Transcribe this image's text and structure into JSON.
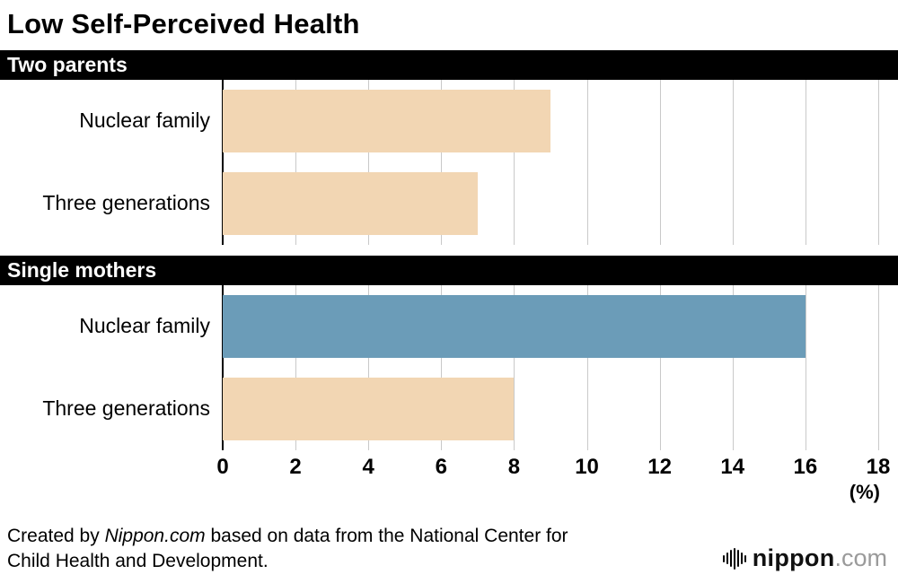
{
  "title": "Low Self-Perceived Health",
  "chart_data": {
    "type": "bar",
    "orientation": "horizontal",
    "title": "Low Self-Perceived Health",
    "xlim": [
      0,
      18
    ],
    "ticks": [
      0,
      2,
      4,
      6,
      8,
      10,
      12,
      14,
      16,
      18
    ],
    "unit_label": "(%)",
    "grid": true,
    "groups": [
      {
        "header": "Two parents",
        "bars": [
          {
            "label": "Nuclear family",
            "value": 9,
            "color": "#f2d6b3"
          },
          {
            "label": "Three generations",
            "value": 7,
            "color": "#f2d6b3"
          }
        ]
      },
      {
        "header": "Single mothers",
        "bars": [
          {
            "label": "Nuclear family",
            "value": 16,
            "color": "#6b9cb8"
          },
          {
            "label": "Three generations",
            "value": 8,
            "color": "#f2d6b3"
          }
        ]
      }
    ]
  },
  "footer": {
    "credit_prefix": "Created by ",
    "credit_source": "Nippon.com",
    "credit_suffix": " based on data from the National Center for Child Health and Development.",
    "logo_name": "nippon",
    "logo_tld": ".com"
  }
}
